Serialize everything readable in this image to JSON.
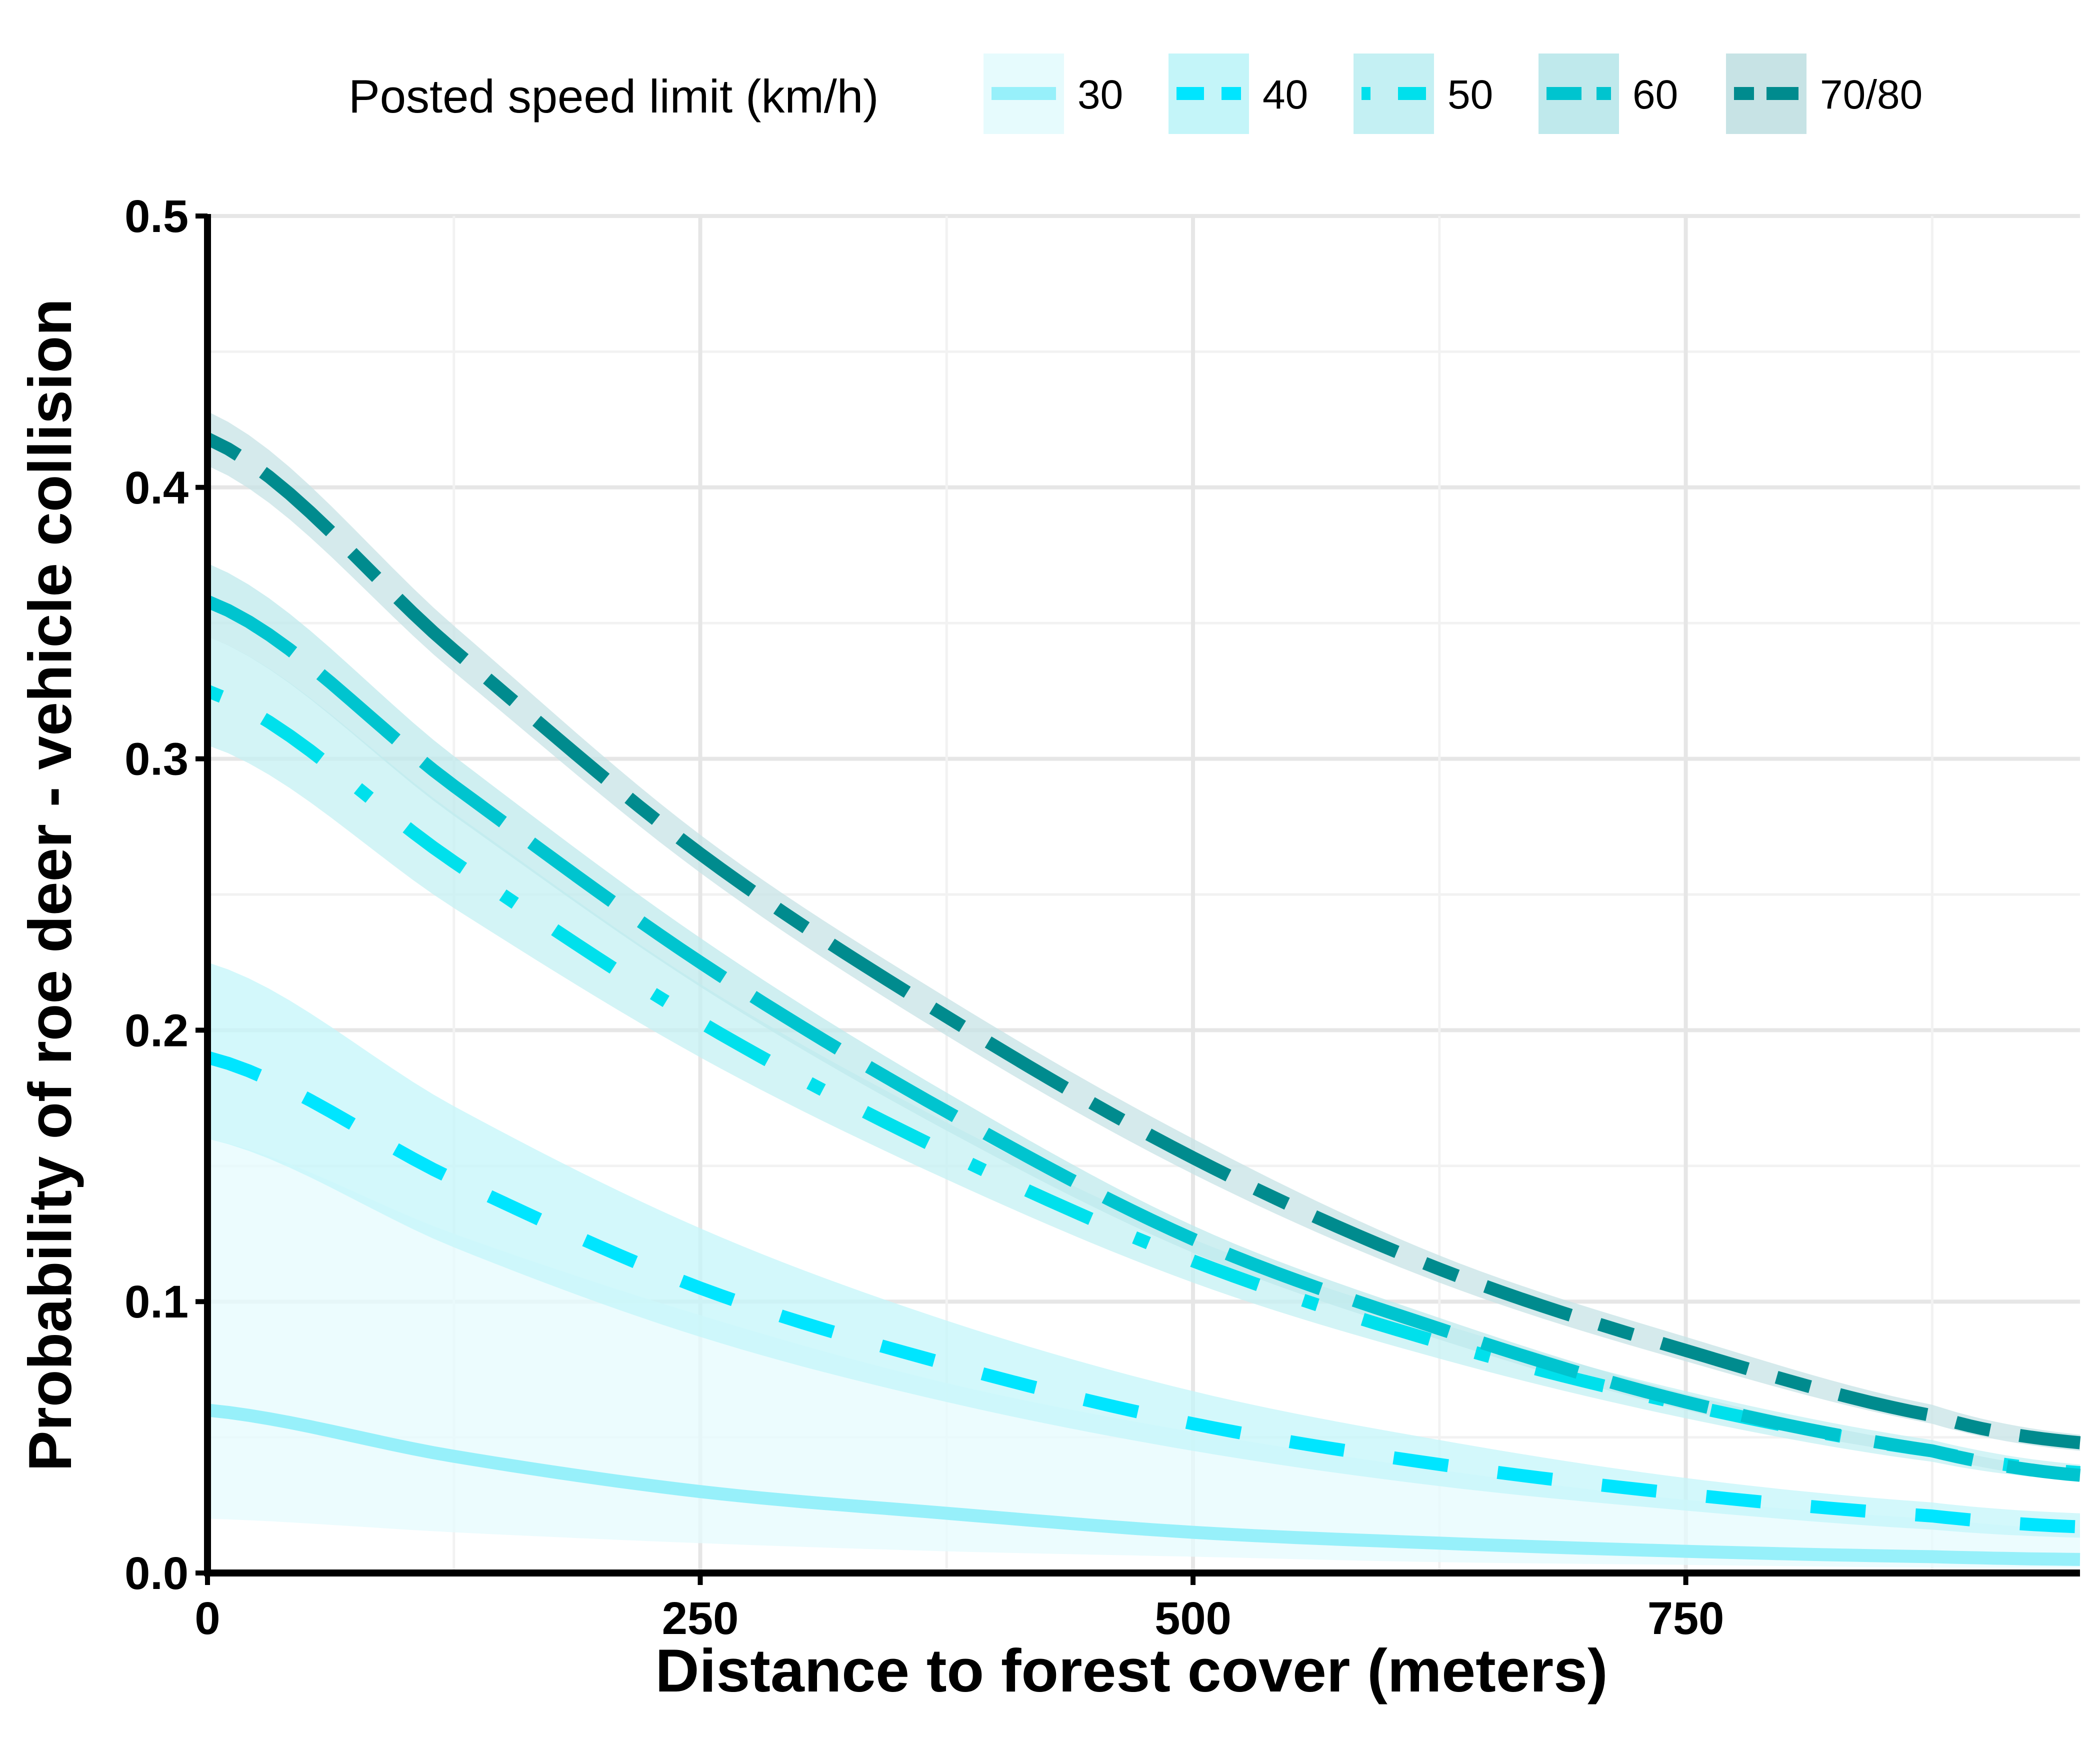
{
  "chart_data": {
    "type": "line",
    "xlabel": "Distance to forest cover (meters)",
    "ylabel": "Probability of roe deer - vehicle collision",
    "xlim": [
      0,
      950
    ],
    "ylim": [
      0,
      0.5
    ],
    "x_ticks": [
      0,
      250,
      500,
      750
    ],
    "x_tick_labels": [
      "0",
      "250",
      "500",
      "750"
    ],
    "y_ticks": [
      0.0,
      0.1,
      0.2,
      0.3,
      0.4,
      0.5
    ],
    "y_tick_labels": [
      "0.0",
      "0.1",
      "0.2",
      "0.3",
      "0.4",
      "0.5"
    ],
    "grid": true,
    "legend": {
      "title": "Posted speed limit (km/h)",
      "position": "top"
    },
    "x": [
      0,
      125,
      250,
      375,
      500,
      625,
      750,
      875,
      950
    ],
    "series": [
      {
        "name": "30",
        "color": "#97f0fa",
        "band_color": "#e6fbfd",
        "line_style": "solid",
        "values": [
          0.06,
          0.043,
          0.03,
          0.022,
          0.015,
          0.011,
          0.008,
          0.006,
          0.005
        ],
        "lower": [
          0.02,
          0.015,
          0.011,
          0.008,
          0.006,
          0.004,
          0.003,
          0.002,
          0.002
        ],
        "upper": [
          0.16,
          0.125,
          0.095,
          0.07,
          0.052,
          0.038,
          0.027,
          0.02,
          0.016
        ]
      },
      {
        "name": "40",
        "color": "#00e5ff",
        "band_color": "#c4f5f9",
        "line_style": "dashed",
        "values": [
          0.19,
          0.145,
          0.105,
          0.077,
          0.055,
          0.04,
          0.029,
          0.021,
          0.017
        ],
        "lower": [
          0.16,
          0.12,
          0.087,
          0.063,
          0.045,
          0.032,
          0.023,
          0.016,
          0.013
        ],
        "upper": [
          0.225,
          0.172,
          0.127,
          0.093,
          0.067,
          0.049,
          0.035,
          0.026,
          0.022
        ]
      },
      {
        "name": "50",
        "color": "#00e0ec",
        "band_color": "#c4f0f3",
        "line_style": "dotdash",
        "values": [
          0.325,
          0.262,
          0.203,
          0.155,
          0.115,
          0.085,
          0.062,
          0.045,
          0.037
        ],
        "lower": [
          0.305,
          0.245,
          0.19,
          0.145,
          0.107,
          0.079,
          0.057,
          0.041,
          0.034
        ],
        "upper": [
          0.345,
          0.28,
          0.217,
          0.166,
          0.123,
          0.092,
          0.067,
          0.049,
          0.04
        ]
      },
      {
        "name": "60",
        "color": "#00c4cf",
        "band_color": "#bfe9ec",
        "line_style": "longdash",
        "values": [
          0.358,
          0.29,
          0.225,
          0.17,
          0.123,
          0.09,
          0.063,
          0.045,
          0.036
        ],
        "lower": [
          0.345,
          0.279,
          0.216,
          0.163,
          0.118,
          0.086,
          0.06,
          0.043,
          0.034
        ],
        "upper": [
          0.372,
          0.301,
          0.234,
          0.177,
          0.128,
          0.094,
          0.066,
          0.047,
          0.038
        ]
      },
      {
        "name": "70/80",
        "color": "#008b8e",
        "band_color": "#c7e3e5",
        "line_style": "twodash",
        "values": [
          0.418,
          0.34,
          0.265,
          0.205,
          0.153,
          0.112,
          0.082,
          0.058,
          0.048
        ],
        "lower": [
          0.408,
          0.332,
          0.258,
          0.198,
          0.147,
          0.107,
          0.078,
          0.055,
          0.045
        ],
        "upper": [
          0.428,
          0.349,
          0.272,
          0.212,
          0.16,
          0.117,
          0.087,
          0.062,
          0.051
        ]
      }
    ]
  }
}
